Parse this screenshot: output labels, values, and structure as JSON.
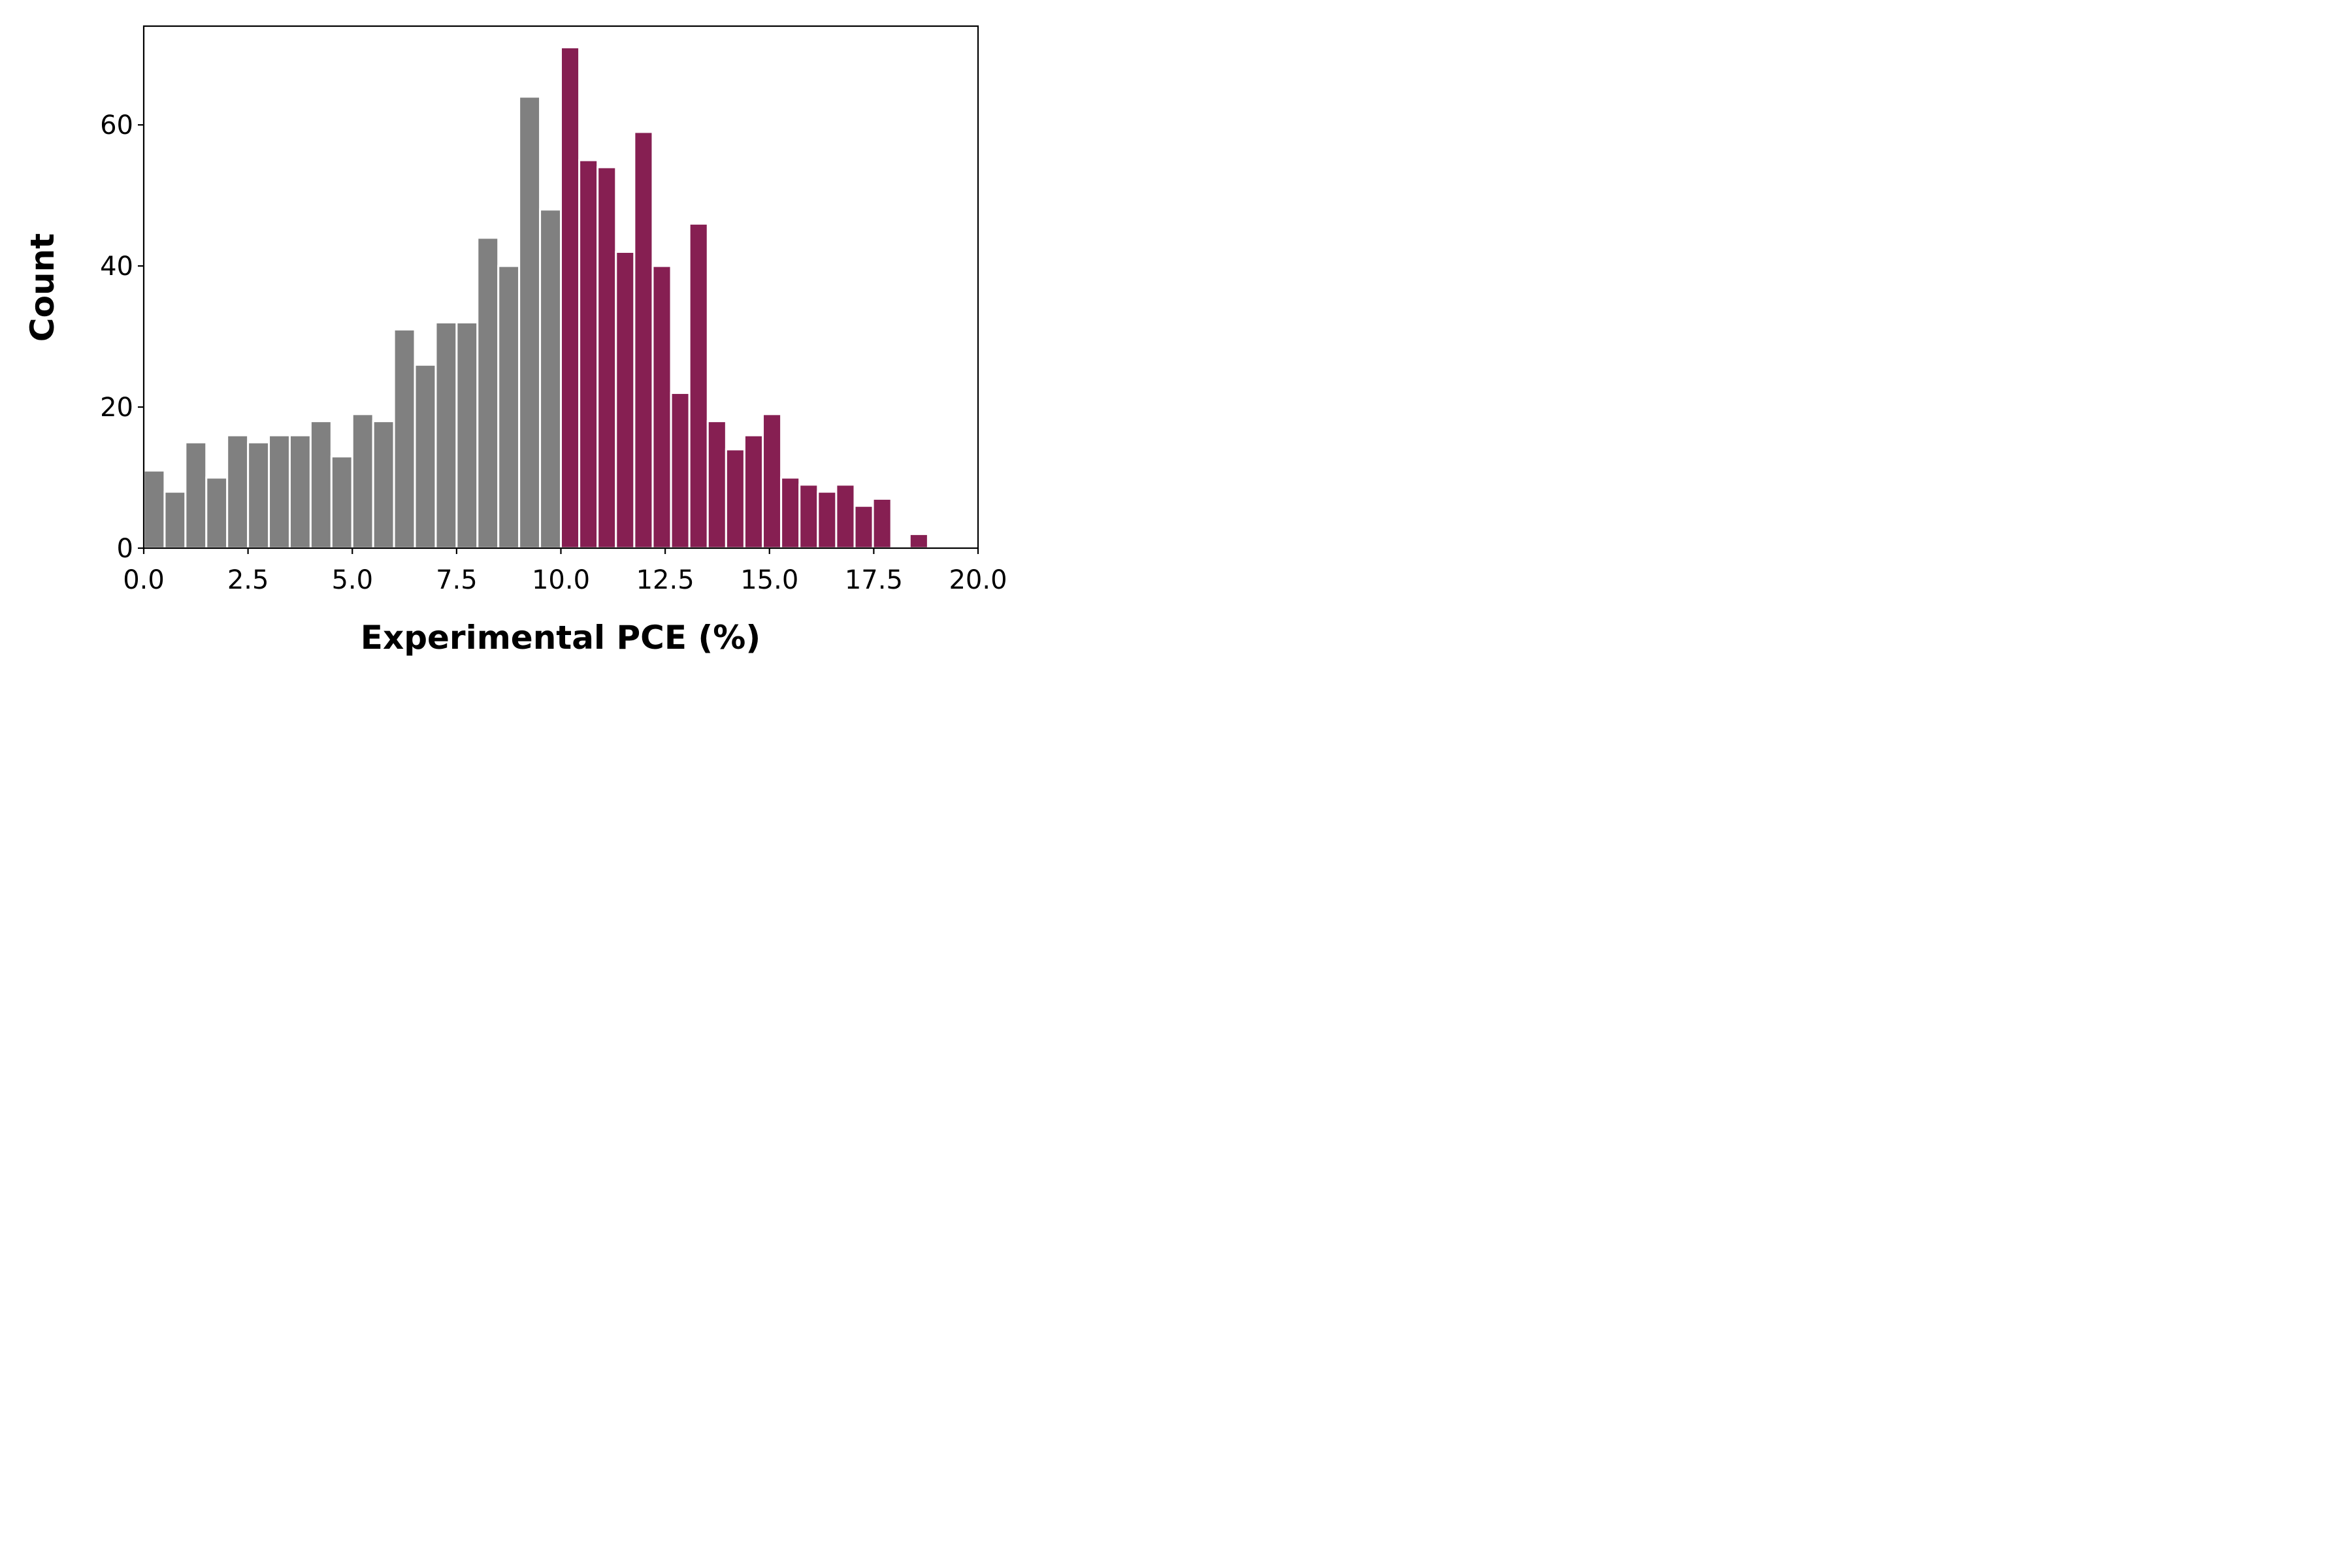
{
  "chart_data": {
    "type": "bar",
    "title": "",
    "xlabel": "Experimental PCE (%)",
    "ylabel": "Count",
    "xlim": [
      0,
      20
    ],
    "ylim": [
      0,
      74
    ],
    "grid": false,
    "legend": "none",
    "bin_width": 0.5,
    "bins": [
      {
        "x0": 0.0,
        "x1": 0.5,
        "value": 11,
        "group": "low"
      },
      {
        "x0": 0.5,
        "x1": 1.0,
        "value": 8,
        "group": "low"
      },
      {
        "x0": 1.0,
        "x1": 1.5,
        "value": 15,
        "group": "low"
      },
      {
        "x0": 1.5,
        "x1": 2.0,
        "value": 10,
        "group": "low"
      },
      {
        "x0": 2.0,
        "x1": 2.5,
        "value": 16,
        "group": "low"
      },
      {
        "x0": 2.5,
        "x1": 3.0,
        "value": 15,
        "group": "low"
      },
      {
        "x0": 3.0,
        "x1": 3.5,
        "value": 16,
        "group": "low"
      },
      {
        "x0": 3.5,
        "x1": 4.0,
        "value": 16,
        "group": "low"
      },
      {
        "x0": 4.0,
        "x1": 4.5,
        "value": 18,
        "group": "low"
      },
      {
        "x0": 4.5,
        "x1": 5.0,
        "value": 13,
        "group": "low"
      },
      {
        "x0": 5.0,
        "x1": 5.5,
        "value": 19,
        "group": "low"
      },
      {
        "x0": 5.5,
        "x1": 6.0,
        "value": 18,
        "group": "low"
      },
      {
        "x0": 6.0,
        "x1": 6.5,
        "value": 31,
        "group": "low"
      },
      {
        "x0": 6.5,
        "x1": 7.0,
        "value": 26,
        "group": "low"
      },
      {
        "x0": 7.0,
        "x1": 7.5,
        "value": 32,
        "group": "low"
      },
      {
        "x0": 7.5,
        "x1": 8.0,
        "value": 32,
        "group": "low"
      },
      {
        "x0": 8.0,
        "x1": 8.5,
        "value": 44,
        "group": "low"
      },
      {
        "x0": 8.5,
        "x1": 9.0,
        "value": 40,
        "group": "low"
      },
      {
        "x0": 9.0,
        "x1": 9.5,
        "value": 64,
        "group": "low"
      },
      {
        "x0": 9.5,
        "x1": 10.0,
        "value": 48,
        "group": "low"
      },
      {
        "x0": 10.0,
        "x1": 10.44,
        "value": 71,
        "group": "high"
      },
      {
        "x0": 10.44,
        "x1": 10.88,
        "value": 55,
        "group": "high"
      },
      {
        "x0": 10.88,
        "x1": 11.32,
        "value": 54,
        "group": "high"
      },
      {
        "x0": 11.32,
        "x1": 11.76,
        "value": 42,
        "group": "high"
      },
      {
        "x0": 11.76,
        "x1": 12.2,
        "value": 59,
        "group": "high"
      },
      {
        "x0": 12.2,
        "x1": 12.64,
        "value": 40,
        "group": "high"
      },
      {
        "x0": 12.64,
        "x1": 13.08,
        "value": 22,
        "group": "high"
      },
      {
        "x0": 13.08,
        "x1": 13.52,
        "value": 46,
        "group": "high"
      },
      {
        "x0": 13.52,
        "x1": 13.96,
        "value": 18,
        "group": "high"
      },
      {
        "x0": 13.96,
        "x1": 14.4,
        "value": 14,
        "group": "high"
      },
      {
        "x0": 14.4,
        "x1": 14.84,
        "value": 16,
        "group": "high"
      },
      {
        "x0": 14.84,
        "x1": 15.28,
        "value": 19,
        "group": "high"
      },
      {
        "x0": 15.28,
        "x1": 15.72,
        "value": 10,
        "group": "high"
      },
      {
        "x0": 15.72,
        "x1": 16.16,
        "value": 9,
        "group": "high"
      },
      {
        "x0": 16.16,
        "x1": 16.6,
        "value": 8,
        "group": "high"
      },
      {
        "x0": 16.6,
        "x1": 17.04,
        "value": 9,
        "group": "high"
      },
      {
        "x0": 17.04,
        "x1": 17.48,
        "value": 6,
        "group": "high"
      },
      {
        "x0": 17.48,
        "x1": 17.92,
        "value": 7,
        "group": "high"
      },
      {
        "x0": 17.92,
        "x1": 18.36,
        "value": 0,
        "group": "high"
      },
      {
        "x0": 18.36,
        "x1": 18.8,
        "value": 2,
        "group": "high"
      },
      {
        "x0": 18.8,
        "x1": 19.24,
        "value": 0,
        "group": "high"
      }
    ],
    "colors": {
      "low": "#808080",
      "high": "#861F52",
      "edge": "#ffffff",
      "axis": "#000000"
    },
    "xticks": [
      {
        "value": 0.0,
        "label": "0.0"
      },
      {
        "value": 2.5,
        "label": "2.5"
      },
      {
        "value": 5.0,
        "label": "5.0"
      },
      {
        "value": 7.5,
        "label": "7.5"
      },
      {
        "value": 10.0,
        "label": "10.0"
      },
      {
        "value": 12.5,
        "label": "12.5"
      },
      {
        "value": 15.0,
        "label": "15.0"
      },
      {
        "value": 17.5,
        "label": "17.5"
      },
      {
        "value": 20.0,
        "label": "20.0"
      }
    ],
    "yticks": [
      {
        "value": 0,
        "label": "0"
      },
      {
        "value": 20,
        "label": "20"
      },
      {
        "value": 40,
        "label": "40"
      },
      {
        "value": 60,
        "label": "60"
      }
    ]
  }
}
